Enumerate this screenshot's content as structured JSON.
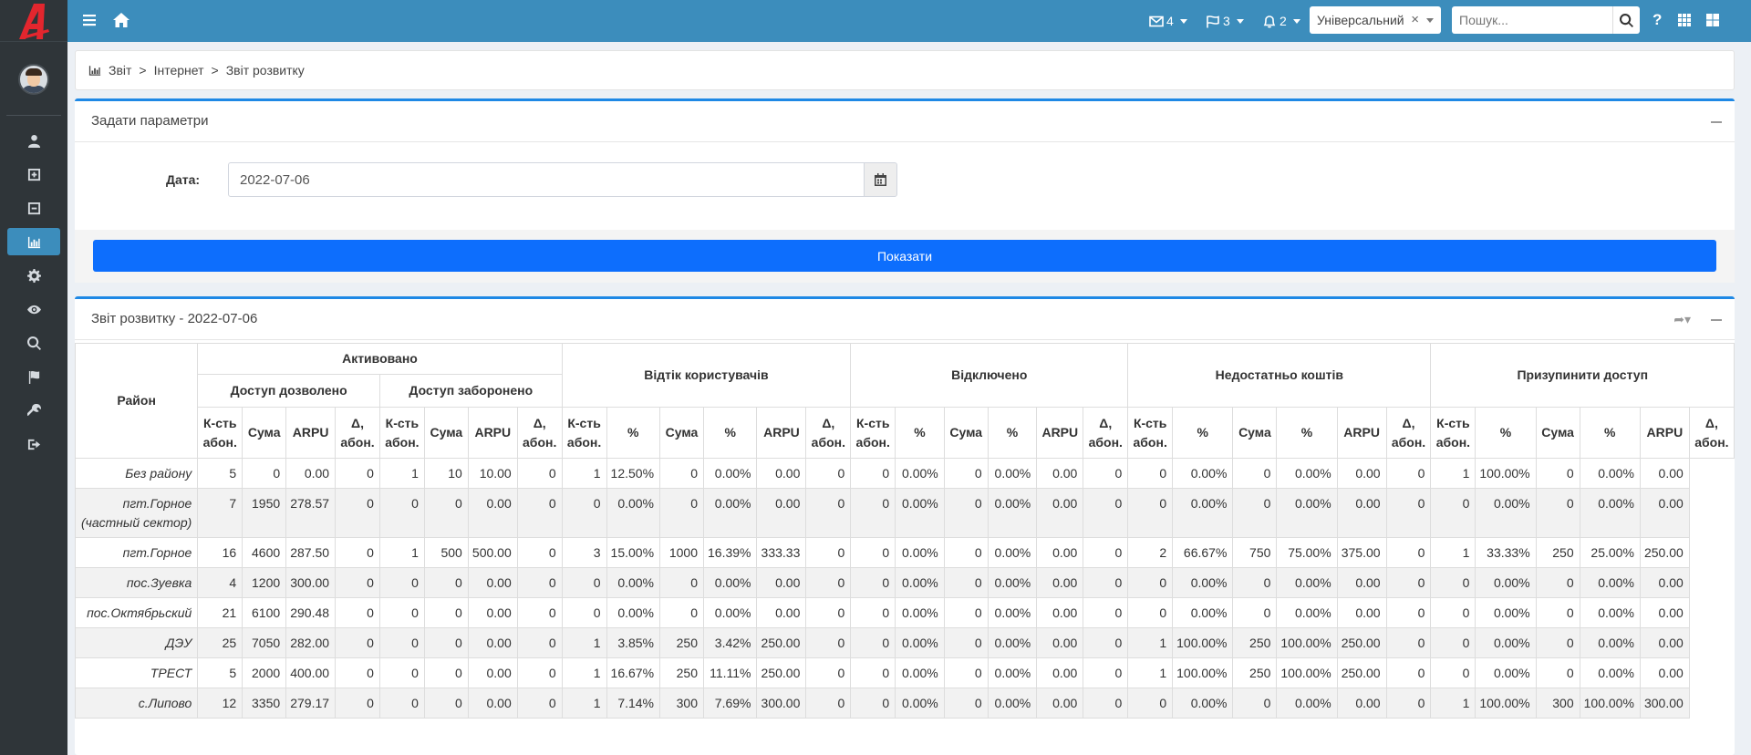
{
  "topbar": {
    "mail_count": "4",
    "flag_count": "3",
    "bell_count": "2",
    "profile_select": "Універсальний",
    "search_placeholder": "Пошук...",
    "help": "?"
  },
  "breadcrumb": {
    "items": [
      "Звіт",
      "Інтернет",
      "Звіт розвитку"
    ],
    "sep": ">"
  },
  "params": {
    "title": "Задати параметри",
    "date_label": "Дата:",
    "date_value": "2022-07-06",
    "show_button": "Показати"
  },
  "report": {
    "title": "Звіт розвитку - 2022-07-06",
    "headers": {
      "district": "Район",
      "activated": "Активовано",
      "access_allowed": "Доступ дозволено",
      "access_denied": "Доступ заборонено",
      "churn": "Відтік користувачів",
      "disconnected": "Відключено",
      "insufficient": "Недостатньо коштів",
      "suspend": "Призупинити доступ",
      "cols": {
        "count": "К-сть абон.",
        "sum": "Сума",
        "arpu": "ARPU",
        "delta": "Δ, абон.",
        "pct": "%"
      }
    },
    "rows": [
      {
        "district": "Без району",
        "v": [
          "5",
          "0",
          "0.00",
          "0",
          "1",
          "10",
          "10.00",
          "0",
          "1",
          "12.50%",
          "0",
          "0.00%",
          "0.00",
          "0",
          "0",
          "0.00%",
          "0",
          "0.00%",
          "0.00",
          "0",
          "0",
          "0.00%",
          "0",
          "0.00%",
          "0.00",
          "0",
          "1",
          "100.00%",
          "0",
          "0.00%",
          "0.00"
        ]
      },
      {
        "district": "пгт.Горное (частный сектор)",
        "v": [
          "7",
          "1950",
          "278.57",
          "0",
          "0",
          "0",
          "0.00",
          "0",
          "0",
          "0.00%",
          "0",
          "0.00%",
          "0.00",
          "0",
          "0",
          "0.00%",
          "0",
          "0.00%",
          "0.00",
          "0",
          "0",
          "0.00%",
          "0",
          "0.00%",
          "0.00",
          "0",
          "0",
          "0.00%",
          "0",
          "0.00%",
          "0.00"
        ]
      },
      {
        "district": "пгт.Горное",
        "v": [
          "16",
          "4600",
          "287.50",
          "0",
          "1",
          "500",
          "500.00",
          "0",
          "3",
          "15.00%",
          "1000",
          "16.39%",
          "333.33",
          "0",
          "0",
          "0.00%",
          "0",
          "0.00%",
          "0.00",
          "0",
          "2",
          "66.67%",
          "750",
          "75.00%",
          "375.00",
          "0",
          "1",
          "33.33%",
          "250",
          "25.00%",
          "250.00"
        ]
      },
      {
        "district": "пос.Зуевка",
        "v": [
          "4",
          "1200",
          "300.00",
          "0",
          "0",
          "0",
          "0.00",
          "0",
          "0",
          "0.00%",
          "0",
          "0.00%",
          "0.00",
          "0",
          "0",
          "0.00%",
          "0",
          "0.00%",
          "0.00",
          "0",
          "0",
          "0.00%",
          "0",
          "0.00%",
          "0.00",
          "0",
          "0",
          "0.00%",
          "0",
          "0.00%",
          "0.00"
        ]
      },
      {
        "district": "пос.Октябрьский",
        "v": [
          "21",
          "6100",
          "290.48",
          "0",
          "0",
          "0",
          "0.00",
          "0",
          "0",
          "0.00%",
          "0",
          "0.00%",
          "0.00",
          "0",
          "0",
          "0.00%",
          "0",
          "0.00%",
          "0.00",
          "0",
          "0",
          "0.00%",
          "0",
          "0.00%",
          "0.00",
          "0",
          "0",
          "0.00%",
          "0",
          "0.00%",
          "0.00"
        ]
      },
      {
        "district": "ДЭУ",
        "v": [
          "25",
          "7050",
          "282.00",
          "0",
          "0",
          "0",
          "0.00",
          "0",
          "1",
          "3.85%",
          "250",
          "3.42%",
          "250.00",
          "0",
          "0",
          "0.00%",
          "0",
          "0.00%",
          "0.00",
          "0",
          "1",
          "100.00%",
          "250",
          "100.00%",
          "250.00",
          "0",
          "0",
          "0.00%",
          "0",
          "0.00%",
          "0.00"
        ]
      },
      {
        "district": "ТРЕСТ",
        "v": [
          "5",
          "2000",
          "400.00",
          "0",
          "0",
          "0",
          "0.00",
          "0",
          "1",
          "16.67%",
          "250",
          "11.11%",
          "250.00",
          "0",
          "0",
          "0.00%",
          "0",
          "0.00%",
          "0.00",
          "0",
          "1",
          "100.00%",
          "250",
          "100.00%",
          "250.00",
          "0",
          "0",
          "0.00%",
          "0",
          "0.00%",
          "0.00"
        ]
      },
      {
        "district": "с.Липово",
        "v": [
          "12",
          "3350",
          "279.17",
          "0",
          "0",
          "0",
          "0.00",
          "0",
          "1",
          "7.14%",
          "300",
          "7.69%",
          "300.00",
          "0",
          "0",
          "0.00%",
          "0",
          "0.00%",
          "0.00",
          "0",
          "0",
          "0.00%",
          "0",
          "0.00%",
          "0.00",
          "0",
          "1",
          "100.00%",
          "300",
          "100.00%",
          "300.00"
        ]
      }
    ]
  },
  "colors": {
    "topbar": "#3c8dbc",
    "sidebar": "#2f3539",
    "primary_button": "#0d6efd",
    "logo": "#e3262e"
  }
}
